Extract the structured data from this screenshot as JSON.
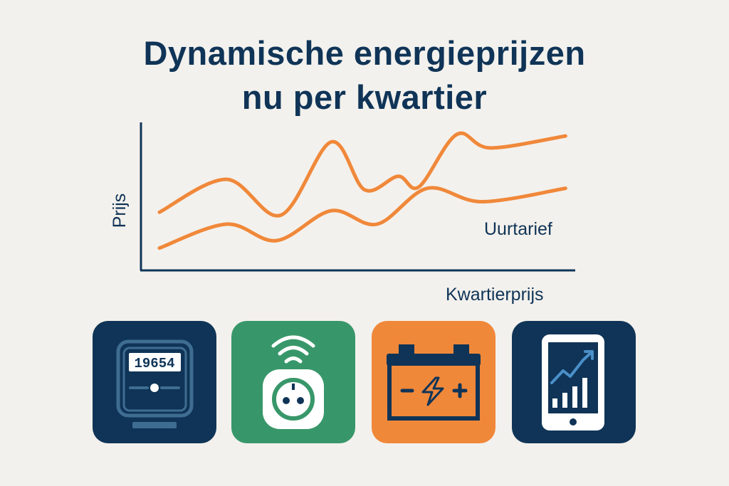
{
  "title": {
    "line1": "Dynamische energieprijzen",
    "line2": "nu per kwartier"
  },
  "chart_data": {
    "type": "line",
    "ylabel": "Prijs",
    "xlabel": "Kwartierprijs",
    "series": [
      {
        "name": "",
        "color": "#f0883a",
        "points": [
          [
            0,
            0.38
          ],
          [
            0.16,
            0.6
          ],
          [
            0.29,
            0.36
          ],
          [
            0.41,
            0.85
          ],
          [
            0.49,
            0.53
          ],
          [
            0.57,
            0.62
          ],
          [
            0.62,
            0.55
          ],
          [
            0.71,
            0.9
          ],
          [
            0.79,
            0.81
          ],
          [
            0.97,
            0.89
          ]
        ]
      },
      {
        "name": "Uurtarief",
        "color": "#f0883a",
        "points": [
          [
            0,
            0.14
          ],
          [
            0.16,
            0.3
          ],
          [
            0.28,
            0.19
          ],
          [
            0.41,
            0.39
          ],
          [
            0.52,
            0.3
          ],
          [
            0.64,
            0.54
          ],
          [
            0.77,
            0.45
          ],
          [
            0.97,
            0.54
          ]
        ]
      }
    ]
  },
  "colors": {
    "navy": "#0f3457",
    "orange": "#f0883a",
    "green": "#38976a",
    "background": "#f3f1ed"
  },
  "icons": [
    {
      "name": "energy-meter-icon",
      "bg": "#0f3457",
      "meter_reading": "19654"
    },
    {
      "name": "smart-plug-icon",
      "bg": "#38976a"
    },
    {
      "name": "battery-icon",
      "bg": "#f0883a"
    },
    {
      "name": "smartphone-chart-icon",
      "bg": "#0f3457"
    }
  ]
}
